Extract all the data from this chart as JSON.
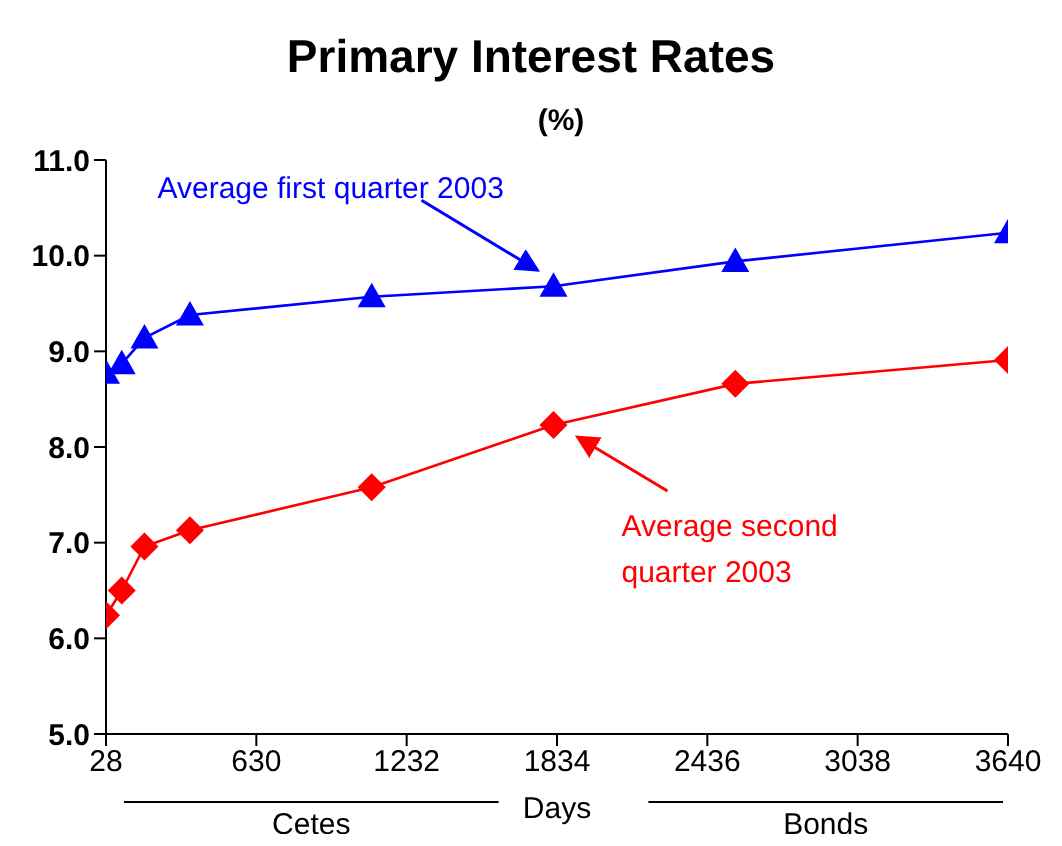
{
  "chart_data": {
    "type": "line",
    "title": "Primary Interest Rates",
    "subtitle": "(%)",
    "xlabel": "Days",
    "x": [
      28,
      91,
      182,
      364,
      1092,
      1820,
      2548,
      3640
    ],
    "series": [
      {
        "name": "Average first quarter 2003",
        "color": "#0000ff",
        "marker": "triangle",
        "values": [
          8.77,
          8.87,
          9.14,
          9.38,
          9.57,
          9.68,
          9.94,
          10.24
        ]
      },
      {
        "name": "Average second quarter 2003",
        "color": "#ff0000",
        "marker": "diamond",
        "values": [
          6.24,
          6.5,
          6.96,
          7.13,
          7.58,
          8.23,
          8.66,
          8.91
        ]
      }
    ],
    "xlim": [
      28,
      3640
    ],
    "xticks": [
      28,
      630,
      1232,
      1834,
      2436,
      3038,
      3640
    ],
    "ylim": [
      5,
      11
    ],
    "yticks": [
      {
        "value": 5,
        "label": "5.0"
      },
      {
        "value": 6,
        "label": "6.0"
      },
      {
        "value": 7,
        "label": "7.0"
      },
      {
        "value": 8,
        "label": "8.0"
      },
      {
        "value": 9,
        "label": "9.0"
      },
      {
        "value": 10,
        "label": "10.0"
      },
      {
        "value": 11,
        "label": "11.0"
      }
    ],
    "annotations": [
      "Cetes",
      "Bonds"
    ],
    "grid": false
  }
}
